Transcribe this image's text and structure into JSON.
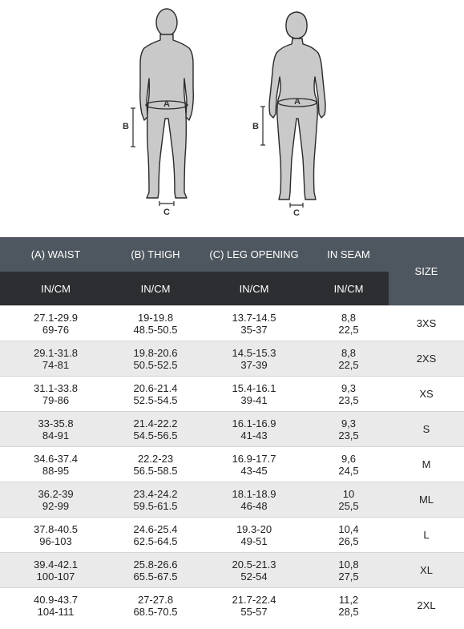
{
  "diagram": {
    "labels": {
      "waist": "A",
      "thigh": "B",
      "leg_opening": "C"
    }
  },
  "table": {
    "headers": [
      "(A) WAIST",
      "(B) THIGH",
      "(C) LEG OPENING",
      "IN SEAM",
      "SIZE"
    ],
    "units": [
      "IN/CM",
      "IN/CM",
      "IN/CM",
      "IN/CM"
    ],
    "rows": [
      {
        "waist_in": "27.1-29.9",
        "waist_cm": "69-76",
        "thigh_in": "19-19.8",
        "thigh_cm": "48.5-50.5",
        "leg_in": "13.7-14.5",
        "leg_cm": "35-37",
        "seam_in": "8,8",
        "seam_cm": "22,5",
        "size": "3XS"
      },
      {
        "waist_in": "29.1-31.8",
        "waist_cm": "74-81",
        "thigh_in": "19.8-20.6",
        "thigh_cm": "50.5-52.5",
        "leg_in": "14.5-15.3",
        "leg_cm": "37-39",
        "seam_in": "8,8",
        "seam_cm": "22,5",
        "size": "2XS"
      },
      {
        "waist_in": "31.1-33.8",
        "waist_cm": "79-86",
        "thigh_in": "20.6-21.4",
        "thigh_cm": "52.5-54.5",
        "leg_in": "15.4-16.1",
        "leg_cm": "39-41",
        "seam_in": "9,3",
        "seam_cm": "23,5",
        "size": "XS"
      },
      {
        "waist_in": "33-35.8",
        "waist_cm": "84-91",
        "thigh_in": "21.4-22.2",
        "thigh_cm": "54.5-56.5",
        "leg_in": "16.1-16.9",
        "leg_cm": "41-43",
        "seam_in": "9,3",
        "seam_cm": "23,5",
        "size": "S"
      },
      {
        "waist_in": "34.6-37.4",
        "waist_cm": "88-95",
        "thigh_in": "22.2-23",
        "thigh_cm": "56.5-58.5",
        "leg_in": "16.9-17.7",
        "leg_cm": "43-45",
        "seam_in": "9,6",
        "seam_cm": "24,5",
        "size": "M"
      },
      {
        "waist_in": "36.2-39",
        "waist_cm": "92-99",
        "thigh_in": "23.4-24.2",
        "thigh_cm": "59.5-61.5",
        "leg_in": "18.1-18.9",
        "leg_cm": "46-48",
        "seam_in": "10",
        "seam_cm": "25,5",
        "size": "ML"
      },
      {
        "waist_in": "37.8-40.5",
        "waist_cm": "96-103",
        "thigh_in": "24.6-25.4",
        "thigh_cm": "62.5-64.5",
        "leg_in": "19.3-20",
        "leg_cm": "49-51",
        "seam_in": "10,4",
        "seam_cm": "26,5",
        "size": "L"
      },
      {
        "waist_in": "39.4-42.1",
        "waist_cm": "100-107",
        "thigh_in": "25.8-26.6",
        "thigh_cm": "65.5-67.5",
        "leg_in": "20.5-21.3",
        "leg_cm": "52-54",
        "seam_in": "10,8",
        "seam_cm": "27,5",
        "size": "XL"
      },
      {
        "waist_in": "40.9-43.7",
        "waist_cm": "104-111",
        "thigh_in": "27-27.8",
        "thigh_cm": "68.5-70.5",
        "leg_in": "21.7-22.4",
        "leg_cm": "55-57",
        "seam_in": "11,2",
        "seam_cm": "28,5",
        "size": "2XL"
      }
    ]
  },
  "colors": {
    "header_top": "#4e565f",
    "header_sub": "#2c2e31",
    "row_alt": "#eaeaea",
    "figure_fill": "#c9c9c9",
    "figure_stroke": "#2a2a2a"
  }
}
